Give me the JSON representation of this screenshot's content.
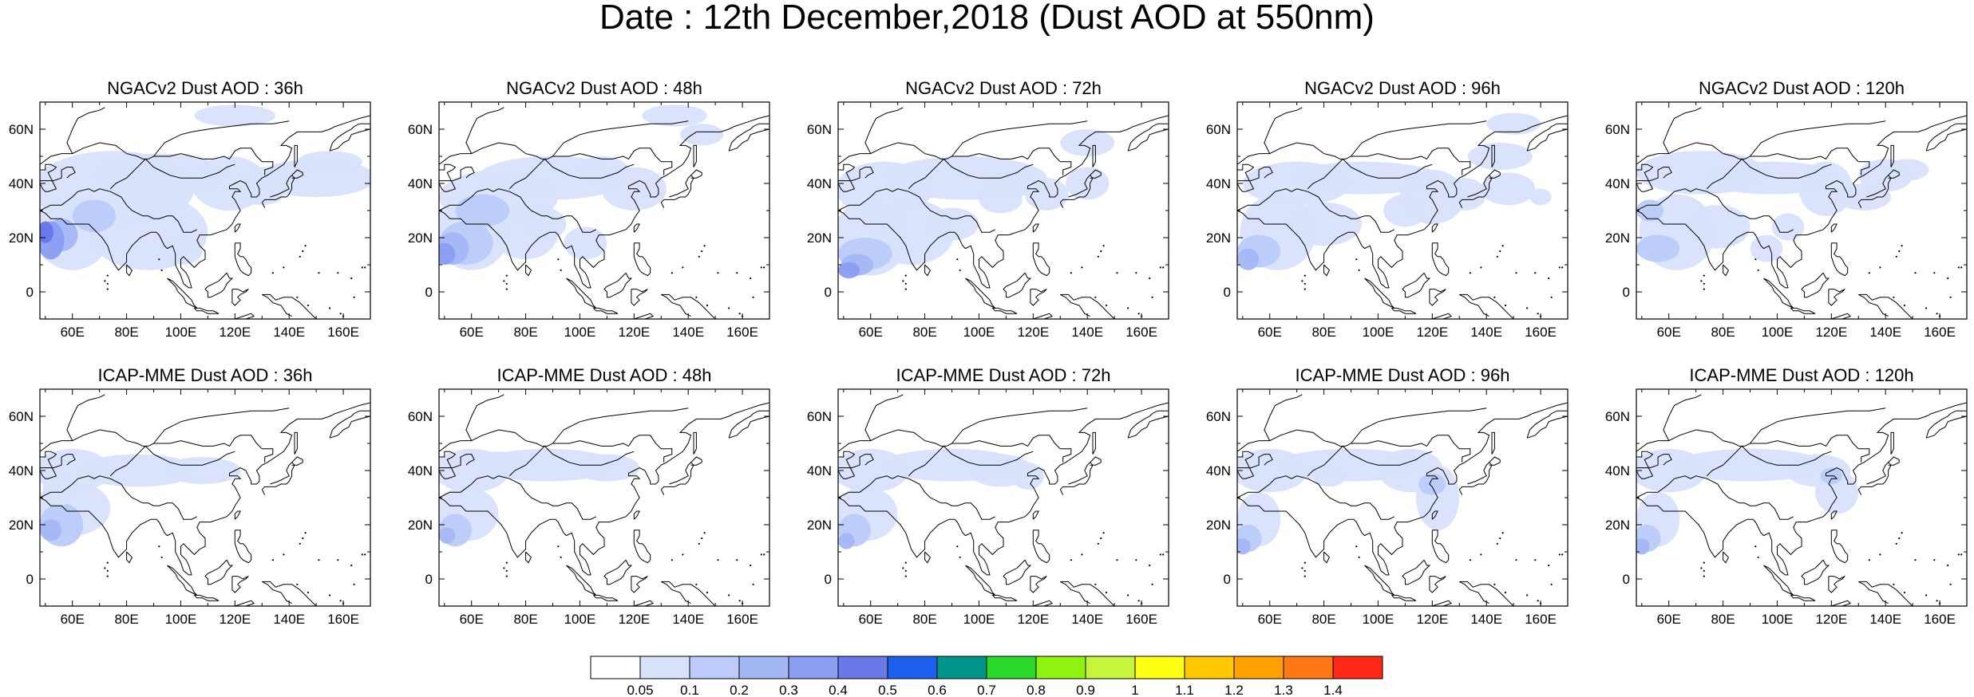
{
  "title": "Date : 12th December,2018 (Dust AOD at 550nm)",
  "colors": {
    "land_outline": "#000000",
    "frame": "#000000",
    "background": "#ffffff"
  },
  "map_extent": {
    "lon": [
      48,
      170
    ],
    "lat": [
      -10,
      70
    ]
  },
  "axes": {
    "x_ticks": [
      "60E",
      "80E",
      "100E",
      "120E",
      "140E",
      "160E"
    ],
    "y_ticks": [
      "60N",
      "40N",
      "20N",
      "0"
    ]
  },
  "panels": [
    {
      "title": "NGACv2 Dust AOD : 36h",
      "model": "NGACv2",
      "lead": "36h"
    },
    {
      "title": "NGACv2 Dust AOD : 48h",
      "model": "NGACv2",
      "lead": "48h"
    },
    {
      "title": "NGACv2 Dust AOD : 72h",
      "model": "NGACv2",
      "lead": "72h"
    },
    {
      "title": "NGACv2 Dust AOD : 96h",
      "model": "NGACv2",
      "lead": "96h"
    },
    {
      "title": "NGACv2 Dust AOD : 120h",
      "model": "NGACv2",
      "lead": "120h"
    },
    {
      "title": "ICAP-MME Dust AOD : 36h",
      "model": "ICAP-MME",
      "lead": "36h"
    },
    {
      "title": "ICAP-MME Dust AOD : 48h",
      "model": "ICAP-MME",
      "lead": "48h"
    },
    {
      "title": "ICAP-MME Dust AOD : 72h",
      "model": "ICAP-MME",
      "lead": "72h"
    },
    {
      "title": "ICAP-MME Dust AOD : 96h",
      "model": "ICAP-MME",
      "lead": "96h"
    },
    {
      "title": "ICAP-MME Dust AOD : 120h",
      "model": "ICAP-MME",
      "lead": "120h"
    }
  ],
  "colorbar": {
    "labels": [
      "0.05",
      "0.1",
      "0.2",
      "0.3",
      "0.4",
      "0.5",
      "0.6",
      "0.7",
      "0.8",
      "0.9",
      "1",
      "1.1",
      "1.2",
      "1.3",
      "1.4"
    ],
    "colors": [
      "#ffffff",
      "#d8e2fb",
      "#bccbf9",
      "#a4b7f5",
      "#8b9df1",
      "#6a78e8",
      "#1f5ff0",
      "#00958a",
      "#2bd92b",
      "#8ff20f",
      "#c6f53c",
      "#ffff14",
      "#ffc800",
      "#ffa000",
      "#ff7814",
      "#ff2814"
    ]
  }
}
